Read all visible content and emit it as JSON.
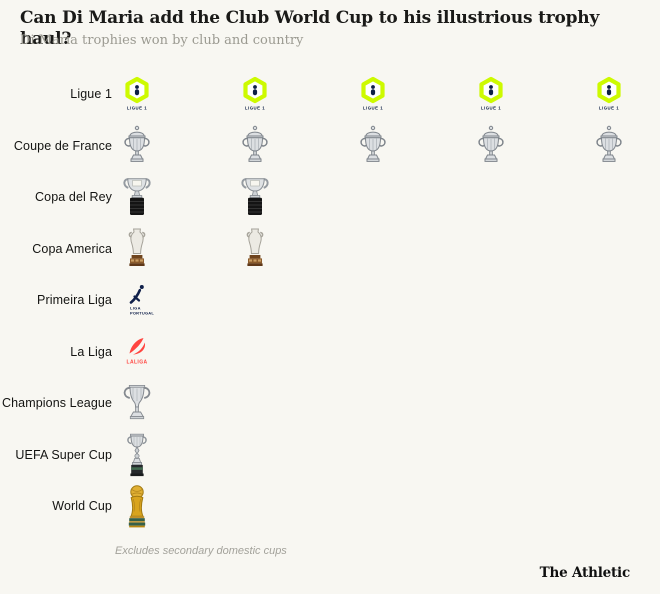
{
  "header": {
    "title": "Can Di Maria add the Club World Cup to his illustrious trophy haul?",
    "subtitle": "Di Maria trophies won by club and country"
  },
  "footer": {
    "footnote": "Excludes secondary domestic cups",
    "brand": "The Athletic"
  },
  "chart_data": {
    "type": "bar",
    "representation": "pictogram-unit-chart (1 trophy icon = 1 trophy won)",
    "title": "Can Di Maria add the Club World Cup to his illustrious trophy haul?",
    "subtitle": "Di Maria trophies won by club and country",
    "categories": [
      "Ligue 1",
      "Coupe de France",
      "Copa del Rey",
      "Copa America",
      "Primeira Liga",
      "La Liga",
      "Champions League",
      "UEFA Super Cup",
      "World Cup"
    ],
    "values": [
      5,
      5,
      2,
      2,
      1,
      1,
      1,
      1,
      1
    ],
    "icons": [
      "ligue1-badge",
      "coupe-de-france-trophy",
      "copa-del-rey-trophy",
      "copa-america-trophy",
      "primeira-liga-badge",
      "laliga-badge",
      "champions-league-trophy",
      "uefa-super-cup-trophy",
      "world-cup-trophy"
    ],
    "icon_captions": {
      "ligue1-badge": "LIGUE 1",
      "primeira-liga-badge": "LIGA PORTUGAL",
      "laliga-badge": "LALIGA"
    },
    "footnote": "Excludes secondary domestic cups",
    "legend_position": "none",
    "grid": false,
    "xlabel": "",
    "ylabel": ""
  },
  "colors": {
    "background": "#f8f7f2",
    "title": "#1a1a18",
    "subtitle": "#9b9a91",
    "label": "#141412",
    "footnote": "#a3a29b",
    "brand": "#0f0f0f",
    "ligue1_chartreuse": "#cdfa00",
    "navy": "#0d1f45",
    "laliga_coral": "#ff4540",
    "trophy_silver": "#dcdfe2",
    "trophy_silver_stroke": "#84898f",
    "world_cup_gold": "#d9a41e",
    "base_black": "#141414",
    "base_brown": "#8a5a2b",
    "base_green": "#35604a"
  }
}
